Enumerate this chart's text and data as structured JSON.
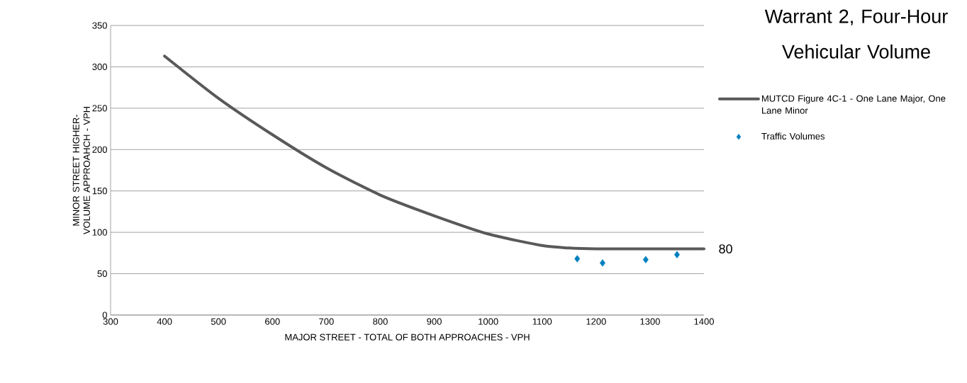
{
  "chart_data": {
    "type": "line",
    "title": "Warrant 2, Four-Hour Vehicular Volume",
    "xlabel": "MAJOR STREET - TOTAL OF BOTH APPROACHES - VPH",
    "ylabel": "MINOR STREET HIGHER-VOLUME APPROAHCH - VPH",
    "xlim": [
      300,
      1400
    ],
    "xticks": [
      300,
      400,
      500,
      600,
      700,
      800,
      900,
      1000,
      1100,
      1200,
      1300,
      1400
    ],
    "ylim": [
      0,
      350
    ],
    "yticks": [
      0,
      50,
      100,
      150,
      200,
      250,
      300,
      350
    ],
    "grid": "y",
    "legend": "right",
    "series": [
      {
        "name": "MUTCD Figure 4C-1 - One Lane Major, One Lane Minor",
        "type": "line",
        "color": "#595959",
        "marker": "none",
        "x": [
          400,
          500,
          600,
          700,
          800,
          900,
          1000,
          1100,
          1150,
          1200,
          1300,
          1400
        ],
        "values": [
          313,
          262,
          218,
          178,
          145,
          120,
          98,
          84,
          81,
          80,
          80,
          80
        ]
      },
      {
        "name": "Traffic Volumes",
        "type": "scatter",
        "color": "#0080c0",
        "marker": "diamond",
        "x": [
          1165,
          1212,
          1292,
          1350
        ],
        "values": [
          68,
          63,
          67,
          73
        ]
      }
    ],
    "annotations": [
      {
        "text": "80",
        "x": 1400,
        "y": 80
      }
    ]
  }
}
